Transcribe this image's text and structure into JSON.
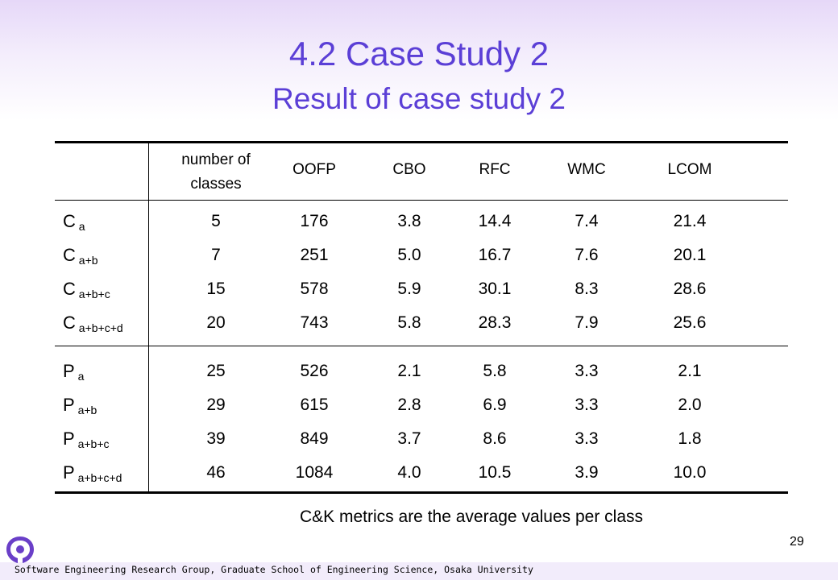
{
  "title": "4.2 Case Study 2",
  "subtitle": "Result of case study 2",
  "table": {
    "headers": [
      "number of classes",
      "OOFP",
      "CBO",
      "RFC",
      "WMC",
      "LCOM"
    ],
    "group1": {
      "labels": [
        {
          "base": "C",
          "sub": "a"
        },
        {
          "base": "C",
          "sub": "a+b"
        },
        {
          "base": "C",
          "sub": "a+b+c"
        },
        {
          "base": "C",
          "sub": "a+b+c+d"
        }
      ],
      "columns": [
        [
          "5",
          "7",
          "15",
          "20"
        ],
        [
          "176",
          "251",
          "578",
          "743"
        ],
        [
          "3.8",
          "5.0",
          "5.9",
          "5.8"
        ],
        [
          "14.4",
          "16.7",
          "30.1",
          "28.3"
        ],
        [
          "7.4",
          "7.6",
          "8.3",
          "7.9"
        ],
        [
          "21.4",
          "20.1",
          "28.6",
          "25.6"
        ]
      ]
    },
    "group2": {
      "labels": [
        {
          "base": "P",
          "sub": "a"
        },
        {
          "base": "P",
          "sub": "a+b"
        },
        {
          "base": "P",
          "sub": "a+b+c"
        },
        {
          "base": "P",
          "sub": "a+b+c+d"
        }
      ],
      "columns": [
        [
          "25",
          "29",
          "39",
          "46"
        ],
        [
          "526",
          "615",
          "849",
          "1084"
        ],
        [
          "2.1",
          "2.8",
          "3.7",
          "4.0"
        ],
        [
          "5.8",
          "6.9",
          "8.6",
          "10.5"
        ],
        [
          "3.3",
          "3.3",
          "3.3",
          "3.9"
        ],
        [
          "2.1",
          "2.0",
          "1.8",
          "10.0"
        ]
      ]
    }
  },
  "note": "C&K metrics are the average values per class",
  "page_number": "29",
  "footer": "Software Engineering Research Group, Graduate School of Engineering Science, Osaka University",
  "colors": {
    "title": "#5b3fd6",
    "logo": "#6a3fc8"
  }
}
